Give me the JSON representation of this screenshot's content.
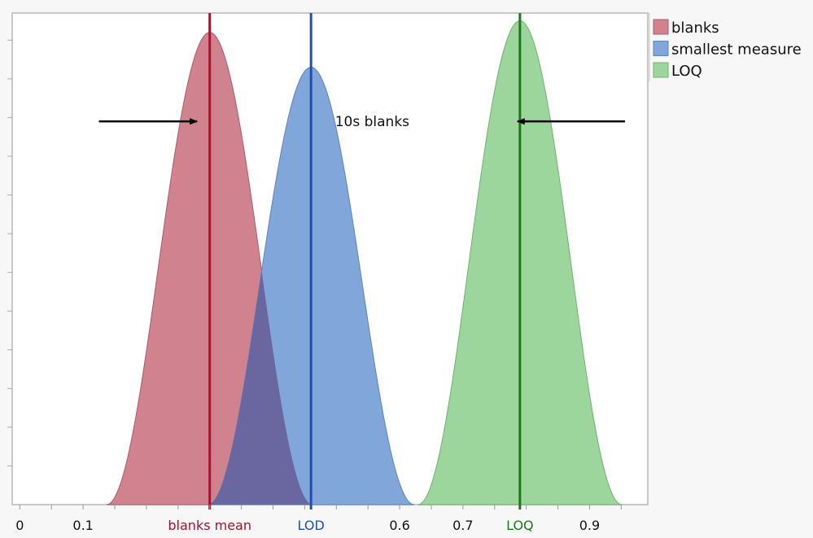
{
  "chart_data": {
    "type": "area",
    "title": "",
    "xlabel": "",
    "ylabel": "",
    "xlim": [
      -0.012,
      0.992
    ],
    "ylim": [
      0,
      12.7
    ],
    "x_tick_step": 0.05,
    "y_tick_step": 1,
    "y_tick_labels_shown": false,
    "grid": false,
    "legend_placement": "right-top",
    "x_tick_labels": [
      {
        "value": 0,
        "label": "0"
      },
      {
        "value": 0.1,
        "label": "0.1"
      },
      {
        "value": 0.6,
        "label": "0.6"
      },
      {
        "value": 0.7,
        "label": "0.7"
      },
      {
        "value": 0.9,
        "label": "0.9"
      }
    ],
    "series": [
      {
        "name": "blanks",
        "center": 0.3,
        "half_width": 0.163,
        "peak": 12.2,
        "fill": "#d0828f",
        "stroke": "#b05a6a"
      },
      {
        "name": "smallest measure",
        "center": 0.46,
        "half_width": 0.163,
        "peak": 11.3,
        "fill": "#80a6da",
        "stroke": "#5a84c4"
      },
      {
        "name": "LOQ",
        "center": 0.79,
        "half_width": 0.161,
        "peak": 12.5,
        "fill": "#9dd69d",
        "stroke": "#6cb46c"
      }
    ],
    "overlap_color": "#6a67a0",
    "reference_lines": [
      {
        "x": 0.3,
        "label": "blanks mean",
        "color": "#a0142c"
      },
      {
        "x": 0.46,
        "label": "LOD",
        "color": "#1f4fb5"
      },
      {
        "x": 0.79,
        "label": "LOQ",
        "color": "#1a7a1a"
      }
    ],
    "annotations": [
      {
        "type": "arrow",
        "from": [
          0.125,
          9.9
        ],
        "to": [
          0.28,
          9.9
        ],
        "color": "#000000"
      },
      {
        "type": "arrow",
        "from": [
          0.956,
          9.9
        ],
        "to": [
          0.786,
          9.9
        ],
        "color": "#000000"
      },
      {
        "type": "text",
        "text": "10s blanks",
        "at": [
          0.498,
          9.9
        ]
      }
    ]
  }
}
